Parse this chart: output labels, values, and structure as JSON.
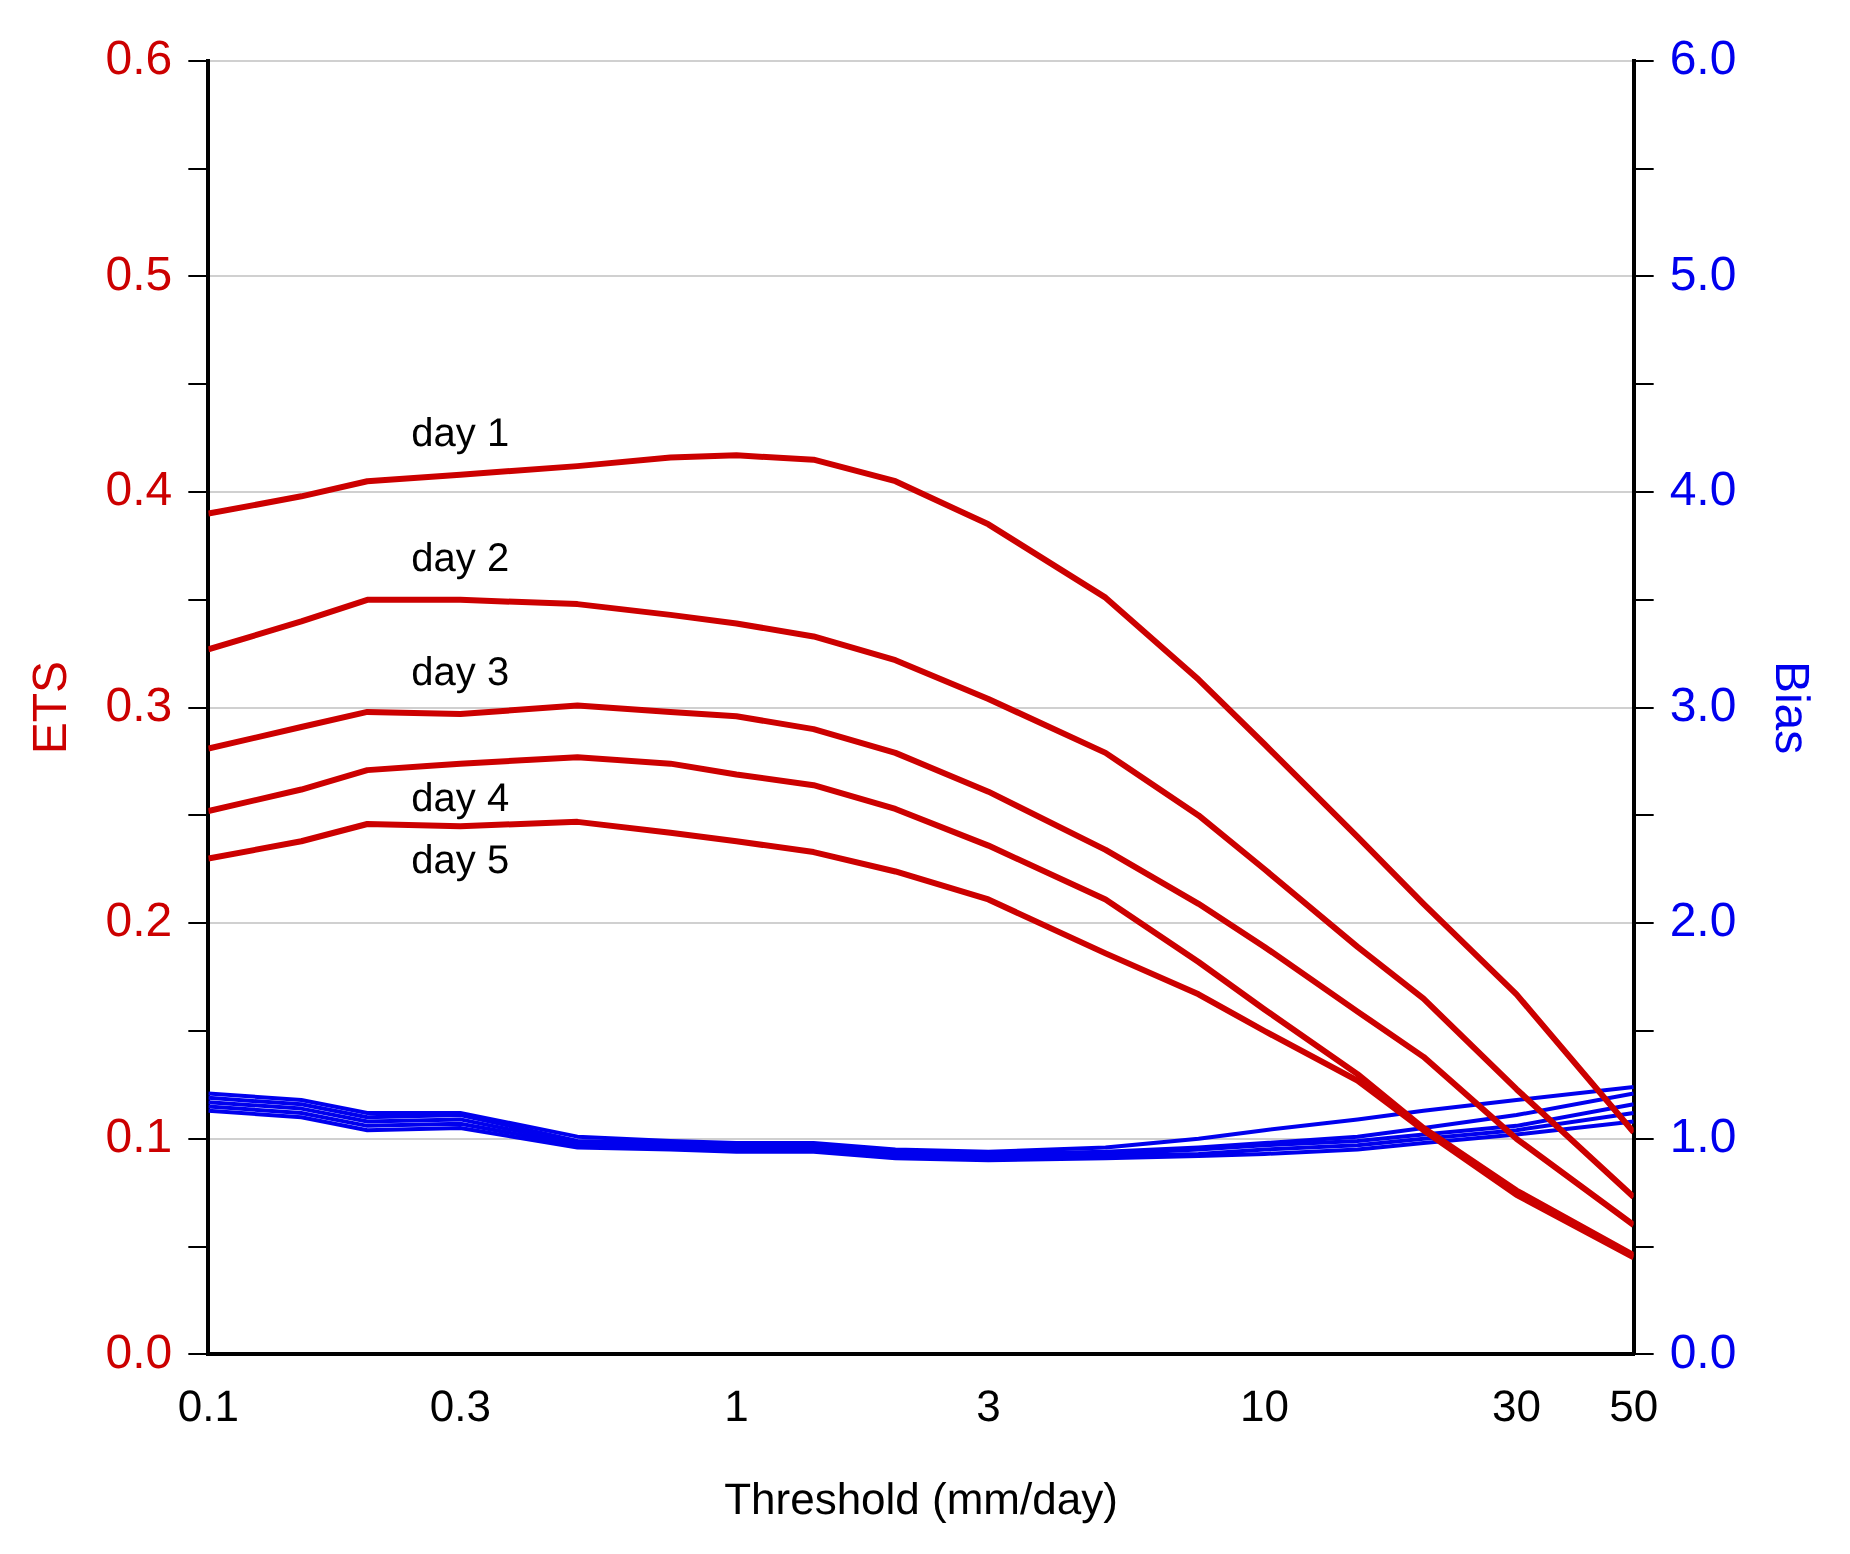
{
  "chart_data": {
    "type": "line",
    "xlabel": "Threshold (mm/day)",
    "ylabel": "ETS",
    "y2label": "Bias",
    "log": "x",
    "grid": "y",
    "legend": false,
    "x": [
      0.1,
      0.15,
      0.2,
      0.3,
      0.5,
      0.75,
      1,
      1.4,
      2,
      3,
      5,
      7.5,
      10,
      15,
      20,
      30,
      50
    ],
    "xlim": [
      0.1,
      50
    ],
    "xticks": [
      0.1,
      0.3,
      1,
      3,
      10,
      30,
      50
    ],
    "ylim": [
      0,
      0.6
    ],
    "yticks": [
      {
        "value": 0,
        "label": "0.0"
      },
      {
        "value": 0.05,
        "label": null
      },
      0.1,
      {
        "value": 0.15,
        "label": null
      },
      0.2,
      {
        "value": 0.25,
        "label": null
      },
      0.3,
      {
        "value": 0.35,
        "label": null
      },
      0.4,
      {
        "value": 0.45,
        "label": null
      },
      0.5,
      {
        "value": 0.55,
        "label": null
      },
      0.6
    ],
    "y2lim": [
      0,
      6
    ],
    "y2ticks": [
      {
        "value": 0,
        "label": "0.0"
      },
      {
        "value": 0.5,
        "label": null
      },
      {
        "value": 1,
        "label": "1.0"
      },
      {
        "value": 1.5,
        "label": null
      },
      {
        "value": 2,
        "label": "2.0"
      },
      {
        "value": 2.5,
        "label": null
      },
      {
        "value": 3,
        "label": "3.0"
      },
      {
        "value": 3.5,
        "label": null
      },
      {
        "value": 4,
        "label": "4.0"
      },
      {
        "value": 4.5,
        "label": null
      },
      {
        "value": 5,
        "label": "5.0"
      },
      {
        "value": 5.5,
        "label": null
      },
      {
        "value": 6,
        "label": "6.0"
      }
    ],
    "series": [
      {
        "name": "day 1",
        "color": "#cc0000",
        "values": [
          0.39,
          0.398,
          0.405,
          0.408,
          0.412,
          0.416,
          0.417,
          0.415,
          0.405,
          0.385,
          0.351,
          0.313,
          0.283,
          0.24,
          0.209,
          0.167,
          0.103
        ]
      },
      {
        "name": "day 2",
        "color": "#cc0000",
        "values": [
          0.327,
          0.34,
          0.35,
          0.35,
          0.348,
          0.343,
          0.339,
          0.333,
          0.322,
          0.304,
          0.279,
          0.25,
          0.225,
          0.189,
          0.165,
          0.123,
          0.073
        ]
      },
      {
        "name": "day 3",
        "color": "#cc0000",
        "values": [
          0.281,
          0.291,
          0.298,
          0.297,
          0.301,
          0.298,
          0.296,
          0.29,
          0.279,
          0.261,
          0.234,
          0.209,
          0.189,
          0.159,
          0.138,
          0.1,
          0.06
        ]
      },
      {
        "name": "day 4",
        "color": "#cc0000",
        "values": [
          0.252,
          0.262,
          0.271,
          0.274,
          0.277,
          0.274,
          0.269,
          0.264,
          0.253,
          0.236,
          0.211,
          0.182,
          0.16,
          0.13,
          0.105,
          0.076,
          0.046
        ]
      },
      {
        "name": "day 5",
        "color": "#cc0000",
        "values": [
          0.23,
          0.238,
          0.246,
          0.245,
          0.247,
          0.242,
          0.238,
          0.233,
          0.224,
          0.211,
          0.186,
          0.167,
          0.15,
          0.127,
          0.104,
          0.074,
          0.045
        ]
      },
      {
        "color": "#0000ee",
        "axis": "y2",
        "values": [
          1.21,
          1.18,
          1.12,
          1.12,
          1.01,
          0.99,
          0.98,
          0.98,
          0.95,
          0.94,
          0.96,
          1.0,
          1.04,
          1.09,
          1.13,
          1.18,
          1.24
        ]
      },
      {
        "color": "#0000ee",
        "axis": "y2",
        "values": [
          1.19,
          1.16,
          1.1,
          1.11,
          0.99,
          0.98,
          0.97,
          0.97,
          0.94,
          0.93,
          0.94,
          0.96,
          0.98,
          1.01,
          1.05,
          1.11,
          1.21
        ]
      },
      {
        "color": "#0000ee",
        "axis": "y2",
        "values": [
          1.17,
          1.14,
          1.08,
          1.09,
          0.98,
          0.97,
          0.96,
          0.96,
          0.93,
          0.92,
          0.93,
          0.95,
          0.97,
          0.99,
          1.02,
          1.06,
          1.16
        ]
      },
      {
        "color": "#0000ee",
        "axis": "y2",
        "values": [
          1.15,
          1.12,
          1.06,
          1.07,
          0.97,
          0.96,
          0.95,
          0.95,
          0.92,
          0.91,
          0.92,
          0.93,
          0.95,
          0.97,
          1.0,
          1.04,
          1.12
        ]
      },
      {
        "color": "#0000ee",
        "axis": "y2",
        "values": [
          1.13,
          1.1,
          1.04,
          1.05,
          0.96,
          0.95,
          0.94,
          0.94,
          0.91,
          0.9,
          0.91,
          0.92,
          0.93,
          0.95,
          0.98,
          1.02,
          1.08
        ]
      }
    ]
  }
}
